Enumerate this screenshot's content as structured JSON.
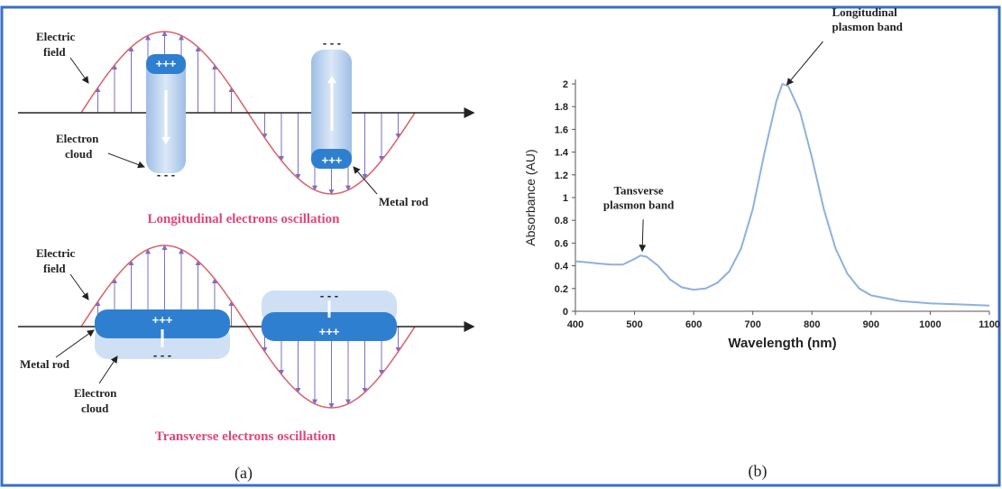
{
  "panel_a": {
    "label": "(a)",
    "longitudinal": {
      "electric_field": [
        "Electric",
        "field"
      ],
      "electron_cloud": [
        "Electron",
        "cloud"
      ],
      "metal_rod": "Metal rod",
      "plus": "+++",
      "minus": "- - -",
      "caption": "Longitudinal electrons oscillation"
    },
    "transverse": {
      "electric_field": [
        "Electric",
        "field"
      ],
      "metal_rod": "Metal rod",
      "electron_cloud": [
        "Electron",
        "cloud"
      ],
      "plus": "+++",
      "minus": "- - -",
      "caption": "Transverse electrons oscillation"
    }
  },
  "chart_data": {
    "type": "line",
    "label": "(b)",
    "xlabel": "Wavelength (nm)",
    "ylabel": "Absorbance (AU)",
    "x": [
      400,
      420,
      440,
      460,
      480,
      500,
      510,
      520,
      540,
      560,
      580,
      600,
      620,
      640,
      660,
      680,
      700,
      720,
      740,
      750,
      760,
      780,
      800,
      820,
      840,
      860,
      880,
      900,
      950,
      1000,
      1050,
      1100
    ],
    "values": [
      0.44,
      0.43,
      0.42,
      0.41,
      0.41,
      0.46,
      0.49,
      0.48,
      0.4,
      0.28,
      0.21,
      0.19,
      0.2,
      0.25,
      0.35,
      0.55,
      0.9,
      1.4,
      1.85,
      2.0,
      1.98,
      1.75,
      1.35,
      0.9,
      0.55,
      0.33,
      0.2,
      0.14,
      0.09,
      0.07,
      0.06,
      0.05
    ],
    "color": "#8fb0dd",
    "xlim": [
      400,
      1100
    ],
    "ylim": [
      0,
      2
    ],
    "xticks": [
      400,
      500,
      600,
      700,
      800,
      900,
      1000,
      1100
    ],
    "yticks": [
      0,
      0.2,
      0.4,
      0.6,
      0.8,
      1,
      1.2,
      1.4,
      1.6,
      1.8,
      2
    ],
    "annotations": [
      {
        "lines": [
          "Tansverse",
          "plasmon band"
        ],
        "x": 510,
        "y": 0.49
      },
      {
        "lines": [
          "Longitudinal",
          "plasmon band"
        ],
        "x": 750,
        "y": 2.0
      }
    ]
  }
}
